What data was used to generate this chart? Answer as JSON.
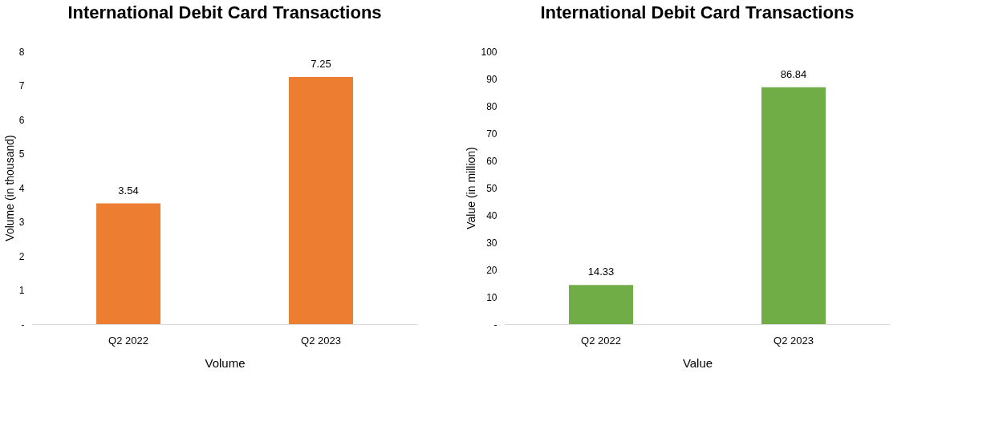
{
  "chart_data": [
    {
      "type": "bar",
      "title": "International Debit Card Transactions",
      "xlabel": "Volume",
      "ylabel": "Volume  (in thousand)",
      "categories": [
        "Q2 2022",
        "Q2 2023"
      ],
      "series": [
        {
          "color": "#ed7d31",
          "values": [
            3.54,
            7.25
          ]
        }
      ],
      "ylim": [
        0,
        8
      ],
      "yticks": [
        {
          "value": 0,
          "label": "-"
        },
        1,
        2,
        3,
        4,
        5,
        6,
        7,
        8
      ],
      "data_labels": true,
      "grid": false
    },
    {
      "type": "bar",
      "title": "International Debit Card Transactions",
      "xlabel": "Value",
      "ylabel": "Value  (in million)",
      "categories": [
        "Q2 2022",
        "Q2 2023"
      ],
      "series": [
        {
          "color": "#70ad47",
          "values": [
            14.33,
            86.84
          ]
        }
      ],
      "ylim": [
        0,
        100
      ],
      "yticks": [
        {
          "value": 0,
          "label": "-"
        },
        10,
        20,
        30,
        40,
        50,
        60,
        70,
        80,
        90,
        100
      ],
      "data_labels": true,
      "grid": false
    }
  ]
}
